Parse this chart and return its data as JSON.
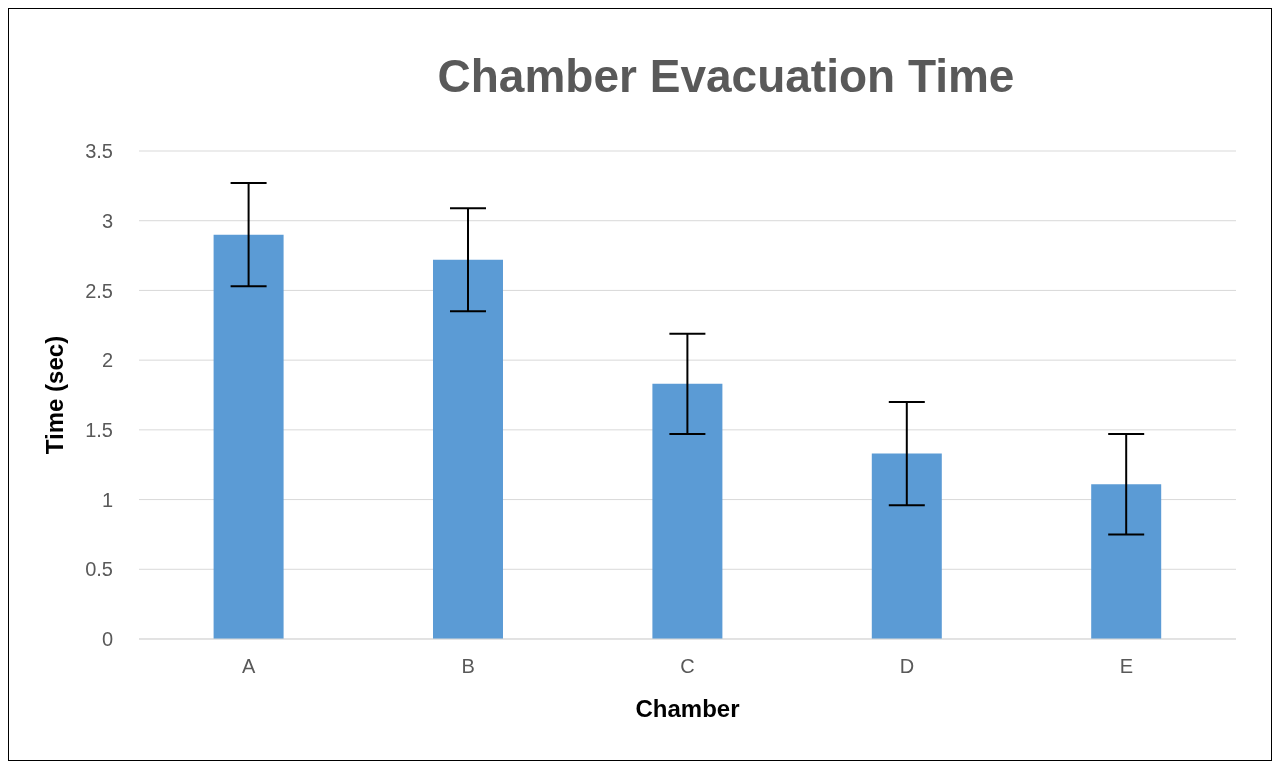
{
  "chart_data": {
    "type": "bar",
    "title": "Chamber Evacuation Time",
    "xlabel": "Chamber",
    "ylabel": "Time (sec)",
    "categories": [
      "A",
      "B",
      "C",
      "D",
      "E"
    ],
    "values": [
      2.9,
      2.72,
      1.83,
      1.33,
      1.11
    ],
    "errors": [
      0.37,
      0.37,
      0.36,
      0.37,
      0.36
    ],
    "color": "#5b9bd5",
    "ylim": [
      0,
      3.5
    ],
    "yticks": [
      0,
      0.5,
      1,
      1.5,
      2,
      2.5,
      3,
      3.5
    ],
    "grid": "y"
  }
}
